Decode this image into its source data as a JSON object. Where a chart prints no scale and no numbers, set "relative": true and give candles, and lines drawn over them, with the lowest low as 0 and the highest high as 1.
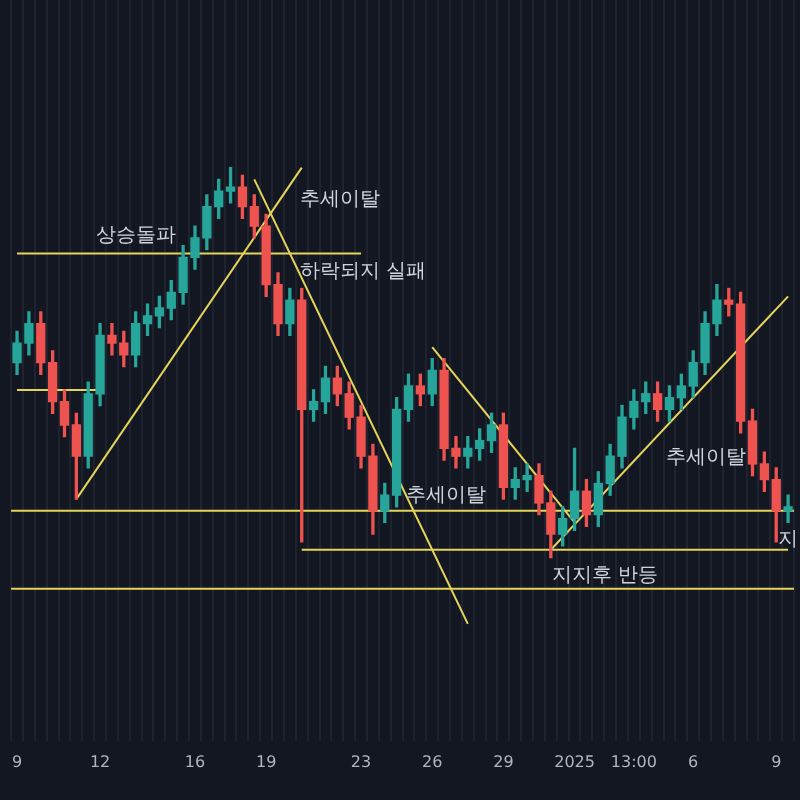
{
  "chart_data": {
    "type": "candlestick",
    "relative": true,
    "grid": "x",
    "categories": [
      "9",
      null,
      null,
      null,
      null,
      null,
      null,
      "12",
      null,
      null,
      null,
      null,
      null,
      null,
      null,
      "16",
      null,
      null,
      null,
      null,
      null,
      "19",
      null,
      null,
      null,
      null,
      null,
      null,
      null,
      "23",
      null,
      null,
      null,
      null,
      null,
      "26",
      null,
      null,
      null,
      null,
      null,
      "29",
      null,
      null,
      null,
      null,
      null,
      "2025",
      null,
      null,
      null,
      null,
      "13:00",
      null,
      null,
      null,
      null,
      "6",
      null,
      null,
      null,
      null,
      null,
      null,
      "9",
      null
    ],
    "ohlc": [
      [
        0.5,
        0.58,
        0.47,
        0.55
      ],
      [
        0.55,
        0.63,
        0.52,
        0.6
      ],
      [
        0.6,
        0.63,
        0.47,
        0.5
      ],
      [
        0.5,
        0.53,
        0.37,
        0.4
      ],
      [
        0.4,
        0.43,
        0.31,
        0.34
      ],
      [
        0.34,
        0.37,
        0.15,
        0.26
      ],
      [
        0.26,
        0.45,
        0.23,
        0.42
      ],
      [
        0.42,
        0.6,
        0.39,
        0.57
      ],
      [
        0.57,
        0.6,
        0.52,
        0.55
      ],
      [
        0.55,
        0.58,
        0.49,
        0.52
      ],
      [
        0.52,
        0.63,
        0.49,
        0.6
      ],
      [
        0.6,
        0.65,
        0.57,
        0.62
      ],
      [
        0.62,
        0.67,
        0.59,
        0.64
      ],
      [
        0.64,
        0.71,
        0.61,
        0.68
      ],
      [
        0.68,
        0.8,
        0.65,
        0.77
      ],
      [
        0.77,
        0.85,
        0.74,
        0.82
      ],
      [
        0.82,
        0.93,
        0.79,
        0.9
      ],
      [
        0.9,
        0.97,
        0.87,
        0.94
      ],
      [
        0.94,
        1.0,
        0.91,
        0.95
      ],
      [
        0.95,
        0.98,
        0.87,
        0.9
      ],
      [
        0.9,
        0.93,
        0.82,
        0.85
      ],
      [
        0.85,
        0.88,
        0.67,
        0.7
      ],
      [
        0.7,
        0.73,
        0.57,
        0.6
      ],
      [
        0.6,
        0.69,
        0.57,
        0.66
      ],
      [
        0.66,
        0.69,
        0.04,
        0.38
      ],
      [
        0.38,
        0.43,
        0.35,
        0.4
      ],
      [
        0.4,
        0.49,
        0.37,
        0.46
      ],
      [
        0.46,
        0.49,
        0.39,
        0.42
      ],
      [
        0.42,
        0.45,
        0.33,
        0.36
      ],
      [
        0.36,
        0.39,
        0.23,
        0.26
      ],
      [
        0.26,
        0.29,
        0.06,
        0.12
      ],
      [
        0.12,
        0.19,
        0.09,
        0.16
      ],
      [
        0.16,
        0.41,
        0.13,
        0.38
      ],
      [
        0.38,
        0.47,
        0.35,
        0.44
      ],
      [
        0.44,
        0.47,
        0.39,
        0.42
      ],
      [
        0.42,
        0.51,
        0.39,
        0.48
      ],
      [
        0.48,
        0.51,
        0.25,
        0.28
      ],
      [
        0.28,
        0.31,
        0.23,
        0.26
      ],
      [
        0.26,
        0.31,
        0.23,
        0.28
      ],
      [
        0.28,
        0.33,
        0.25,
        0.3
      ],
      [
        0.3,
        0.37,
        0.27,
        0.34
      ],
      [
        0.34,
        0.37,
        0.15,
        0.18
      ],
      [
        0.18,
        0.23,
        0.15,
        0.2
      ],
      [
        0.2,
        0.24,
        0.17,
        0.21
      ],
      [
        0.21,
        0.24,
        0.11,
        0.14
      ],
      [
        0.14,
        0.17,
        0.0,
        0.06
      ],
      [
        0.06,
        0.13,
        0.03,
        0.1
      ],
      [
        0.1,
        0.28,
        0.07,
        0.17
      ],
      [
        0.17,
        0.2,
        0.08,
        0.11
      ],
      [
        0.11,
        0.22,
        0.08,
        0.19
      ],
      [
        0.19,
        0.29,
        0.16,
        0.26
      ],
      [
        0.26,
        0.39,
        0.23,
        0.36
      ],
      [
        0.36,
        0.43,
        0.33,
        0.4
      ],
      [
        0.4,
        0.45,
        0.37,
        0.42
      ],
      [
        0.42,
        0.45,
        0.35,
        0.38
      ],
      [
        0.38,
        0.44,
        0.35,
        0.41
      ],
      [
        0.41,
        0.47,
        0.38,
        0.44
      ],
      [
        0.44,
        0.53,
        0.41,
        0.5
      ],
      [
        0.5,
        0.63,
        0.47,
        0.6
      ],
      [
        0.6,
        0.7,
        0.57,
        0.66
      ],
      [
        0.66,
        0.69,
        0.62,
        0.65
      ],
      [
        0.65,
        0.68,
        0.32,
        0.35
      ],
      [
        0.35,
        0.38,
        0.21,
        0.24
      ],
      [
        0.24,
        0.27,
        0.17,
        0.2
      ],
      [
        0.2,
        0.23,
        0.04,
        0.12
      ],
      [
        0.12,
        0.16,
        0.09,
        0.13
      ]
    ],
    "series": [
      {
        "type": "line",
        "color": "#e6d45a",
        "values": [
          0.78,
          null,
          null,
          null,
          null,
          null,
          null,
          null,
          null,
          null,
          null,
          null,
          null,
          null,
          null,
          null,
          null,
          null,
          null,
          null,
          null,
          null,
          null,
          null,
          null,
          null,
          null,
          null,
          null,
          0.78,
          null,
          null,
          null,
          null,
          null,
          null,
          null,
          null,
          null,
          null,
          null,
          null,
          null,
          null,
          null,
          null,
          null,
          null,
          null,
          null,
          null,
          null,
          null,
          null,
          null,
          null,
          null,
          null,
          null,
          null,
          null,
          null,
          null,
          null,
          null,
          null
        ]
      },
      {
        "type": "line",
        "color": "#e6d45a",
        "values": [
          0.43,
          null,
          null,
          null,
          null,
          null,
          null,
          0.43,
          null,
          null,
          null,
          null,
          null,
          null,
          null,
          null,
          null,
          null,
          null,
          null,
          null,
          null,
          null,
          null,
          null,
          null,
          null,
          null,
          null,
          null,
          null,
          null,
          null,
          null,
          null,
          null,
          null,
          null,
          null,
          null,
          null,
          null,
          null,
          null,
          null,
          null,
          null,
          null,
          null,
          null,
          null,
          null,
          null,
          null,
          null,
          null,
          null,
          null,
          null,
          null,
          null,
          null,
          null,
          null,
          null,
          null
        ]
      },
      {
        "type": "line",
        "color": "#e6d45a",
        "values": [
          null,
          null,
          null,
          null,
          null,
          null,
          null,
          null,
          null,
          null,
          null,
          null,
          null,
          null,
          null,
          null,
          null,
          null,
          null,
          null,
          null,
          null,
          null,
          null,
          0.02,
          null,
          null,
          null,
          null,
          null,
          null,
          null,
          null,
          null,
          null,
          null,
          null,
          null,
          null,
          null,
          null,
          null,
          null,
          null,
          null,
          null,
          null,
          null,
          null,
          null,
          null,
          null,
          null,
          null,
          null,
          null,
          null,
          null,
          null,
          null,
          null,
          null,
          null,
          null,
          null,
          0.02
        ]
      },
      {
        "type": "line",
        "color": "#e6d45a",
        "values": [
          null,
          null,
          null,
          null,
          null,
          0.15,
          null,
          null,
          null,
          null,
          null,
          null,
          null,
          null,
          null,
          null,
          null,
          null,
          null,
          null,
          null,
          null,
          null,
          null,
          1.0,
          null,
          null,
          null,
          null,
          null,
          null,
          null,
          null,
          null,
          null,
          null,
          null,
          null,
          null,
          null,
          null,
          null,
          null,
          null,
          null,
          null,
          null,
          null,
          null,
          null,
          null,
          null,
          null,
          null,
          null,
          null,
          null,
          null,
          null,
          null,
          null,
          null,
          null,
          null,
          null,
          null
        ]
      },
      {
        "type": "line",
        "color": "#e6d45a",
        "values": [
          null,
          null,
          null,
          null,
          null,
          null,
          null,
          null,
          null,
          null,
          null,
          null,
          null,
          null,
          null,
          null,
          null,
          null,
          null,
          null,
          0.97,
          null,
          null,
          null,
          null,
          null,
          null,
          null,
          null,
          null,
          null,
          null,
          null,
          null,
          null,
          null,
          null,
          null,
          -0.17,
          null,
          null,
          null,
          null,
          null,
          null,
          null,
          null,
          null,
          null,
          null,
          null,
          null,
          null,
          null,
          null,
          null,
          null,
          null,
          null,
          null,
          null,
          null,
          null,
          null,
          null,
          null
        ]
      },
      {
        "type": "line",
        "color": "#e6d45a",
        "values": [
          null,
          null,
          null,
          null,
          null,
          null,
          null,
          null,
          null,
          null,
          null,
          null,
          null,
          null,
          null,
          null,
          null,
          null,
          null,
          null,
          null,
          null,
          null,
          null,
          null,
          null,
          null,
          null,
          null,
          null,
          null,
          null,
          null,
          null,
          null,
          0.54,
          null,
          null,
          null,
          null,
          null,
          null,
          null,
          null,
          null,
          null,
          null,
          0.09,
          null,
          null,
          null,
          null,
          null,
          null,
          null,
          null,
          null,
          null,
          null,
          null,
          null,
          null,
          null,
          null,
          null,
          null
        ]
      },
      {
        "type": "line",
        "color": "#e6d45a",
        "values": [
          null,
          null,
          null,
          null,
          null,
          null,
          null,
          null,
          null,
          null,
          null,
          null,
          null,
          null,
          null,
          null,
          null,
          null,
          null,
          null,
          null,
          null,
          null,
          null,
          null,
          null,
          null,
          null,
          null,
          null,
          null,
          null,
          null,
          null,
          null,
          null,
          null,
          null,
          null,
          null,
          null,
          null,
          null,
          null,
          null,
          0.02,
          null,
          null,
          null,
          null,
          null,
          null,
          null,
          null,
          null,
          null,
          null,
          null,
          null,
          null,
          null,
          null,
          null,
          null,
          null,
          0.67
        ]
      }
    ],
    "ref_lines": [
      {
        "axis": "y",
        "value": 0.12,
        "color": "#e6d45a"
      },
      {
        "axis": "y",
        "value": -0.08,
        "color": "#e6d45a"
      }
    ],
    "annotations": [
      "상승돌파",
      "추세이탈",
      "하락되지 실패",
      "추세이탈",
      "지지후 반등",
      "추세이탈",
      "지"
    ]
  }
}
